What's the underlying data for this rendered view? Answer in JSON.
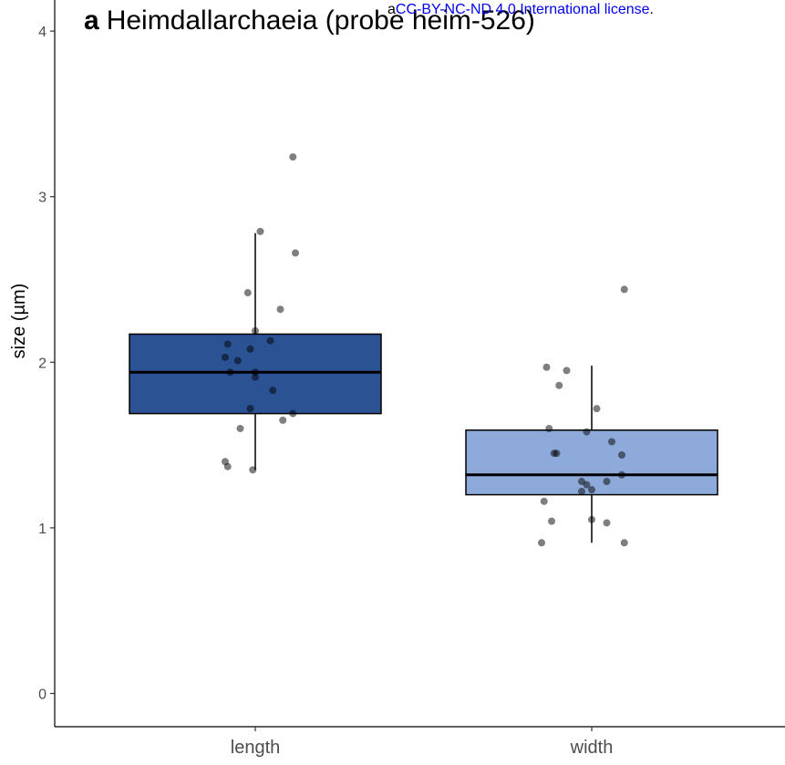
{
  "license": {
    "prefix": "a",
    "text": "CC-BY-NC-ND 4.0 International license",
    "suffix": ".",
    "color": "#0000ee"
  },
  "chart_data": {
    "type": "box",
    "panel_label": "a",
    "title": "Heimdallarchaeia (probe heim-526)",
    "xlabel": "",
    "ylabel": "size (µm)",
    "ylim": [
      -0.2,
      4.15
    ],
    "yticks": [
      0,
      1,
      2,
      3,
      4
    ],
    "categories": [
      "length",
      "width"
    ],
    "grid": false,
    "boxes": [
      {
        "category": "length",
        "fill": "#2b5394",
        "whisker_low": 1.35,
        "q1": 1.69,
        "median": 1.94,
        "q3": 2.17,
        "whisker_high": 2.78,
        "outliers": [
          3.24
        ]
      },
      {
        "category": "width",
        "fill": "#8eaadb",
        "whisker_low": 0.91,
        "q1": 1.2,
        "median": 1.32,
        "q3": 1.59,
        "whisker_high": 1.98,
        "outliers": [
          2.44
        ]
      }
    ],
    "points": {
      "color": "#000000",
      "opacity": 0.5,
      "series": [
        {
          "category": "length",
          "offsets": [
            0.15,
            0.02,
            -0.03,
            0.16,
            0.1,
            -0.11,
            0.06,
            0.0,
            -0.12,
            -0.07,
            -0.02,
            0.0,
            0.07,
            -0.1,
            0.0,
            0.11,
            0.15,
            -0.02,
            -0.06,
            -0.12,
            -0.11,
            -0.01
          ],
          "values": [
            3.24,
            2.79,
            2.42,
            2.66,
            2.32,
            2.11,
            2.13,
            2.19,
            2.03,
            2.01,
            2.08,
            1.94,
            1.83,
            1.94,
            1.91,
            1.65,
            1.69,
            1.72,
            1.6,
            1.4,
            1.37,
            1.35
          ]
        },
        {
          "category": "width",
          "offsets": [
            0.13,
            -0.18,
            -0.1,
            -0.13,
            0.02,
            -0.17,
            -0.15,
            -0.14,
            0.08,
            0.12,
            -0.02,
            0.06,
            0.12,
            -0.04,
            -0.04,
            -0.02,
            0.0,
            -0.19,
            0.0,
            0.06,
            -0.16,
            -0.2,
            0.13
          ],
          "values": [
            2.44,
            1.97,
            1.95,
            1.86,
            1.72,
            1.6,
            1.45,
            1.45,
            1.52,
            1.44,
            1.58,
            1.28,
            1.32,
            1.28,
            1.22,
            1.26,
            1.23,
            1.16,
            1.05,
            1.03,
            1.04,
            0.91,
            0.91
          ]
        }
      ]
    }
  }
}
